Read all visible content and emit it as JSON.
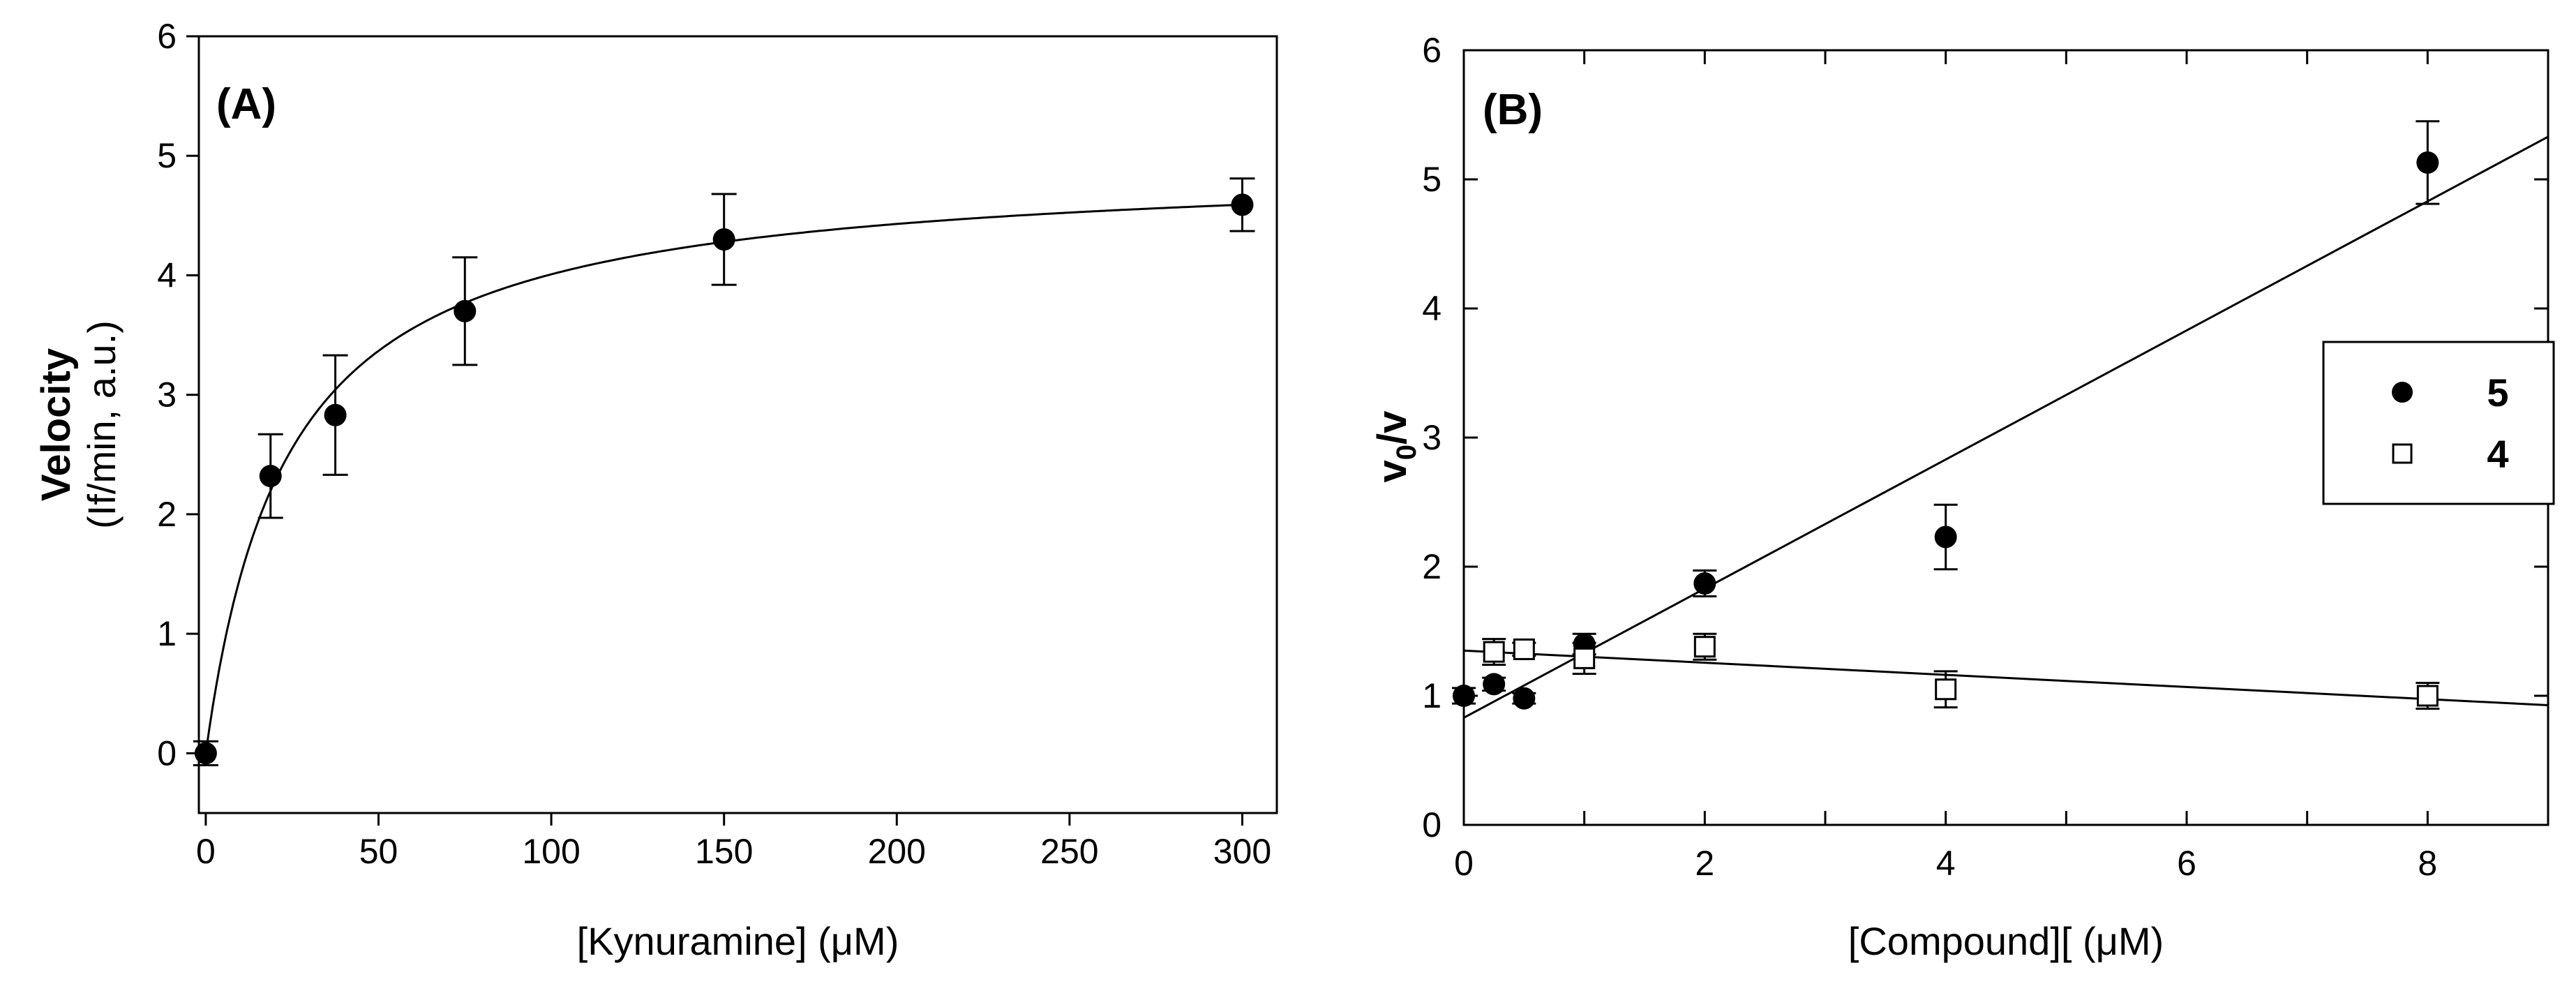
{
  "chart_data": [
    {
      "type": "scatter",
      "panel_label": "(A)",
      "xlabel": "[Kynuramine] (μM)",
      "ylabel": "Velocity",
      "ylabel_sub": "(If/min, a.u.)",
      "xlim": [
        -2,
        310
      ],
      "ylim": [
        -0.5,
        6
      ],
      "xticks": [
        0,
        50,
        100,
        150,
        200,
        250,
        300
      ],
      "yticks": [
        0,
        1,
        2,
        3,
        4,
        5,
        6
      ],
      "series": [
        {
          "marker": "filled-circle",
          "x": [
            0,
            18.75,
            37.5,
            75,
            150,
            300
          ],
          "y": [
            0,
            2.32,
            2.83,
            3.7,
            4.3,
            4.59
          ],
          "err": [
            0.1,
            0.35,
            0.5,
            0.45,
            0.38,
            0.22
          ]
        }
      ],
      "fit": {
        "type": "michaelis-menten",
        "vmax": 4.95,
        "km": 23.5
      },
      "grid": false
    },
    {
      "type": "scatter",
      "panel_label": "(B)",
      "xlabel": "[Compound][ (μM)",
      "ylabel_main": "v",
      "ylabel_sub": "0",
      "ylabel_tail": "/v",
      "xlim": [
        0,
        9
      ],
      "ylim": [
        0,
        6
      ],
      "xticks": [
        0,
        2,
        4,
        6,
        8
      ],
      "xticks_minor": [
        1,
        3,
        5,
        7,
        9
      ],
      "yticks": [
        0,
        1,
        2,
        3,
        4,
        5,
        6
      ],
      "series": [
        {
          "name": "5",
          "marker": "filled-circle",
          "x": [
            0,
            0.25,
            0.5,
            1,
            2,
            4,
            8
          ],
          "y": [
            1.0,
            1.09,
            0.98,
            1.4,
            1.87,
            2.23,
            5.13
          ],
          "err": [
            0.06,
            0.05,
            0.04,
            0.08,
            0.1,
            0.25,
            0.32
          ],
          "fit": {
            "slope": 0.5,
            "intercept": 0.83
          }
        },
        {
          "name": "4",
          "marker": "open-square",
          "x": [
            0.25,
            0.5,
            1,
            2,
            4,
            8
          ],
          "y": [
            1.34,
            1.36,
            1.29,
            1.38,
            1.05,
            1.0
          ],
          "err": [
            0.1,
            0.05,
            0.12,
            0.1,
            0.14,
            0.1
          ],
          "fit": {
            "slope": -0.047,
            "intercept": 1.35
          }
        }
      ],
      "legend": {
        "position": "right"
      },
      "grid": false
    }
  ]
}
